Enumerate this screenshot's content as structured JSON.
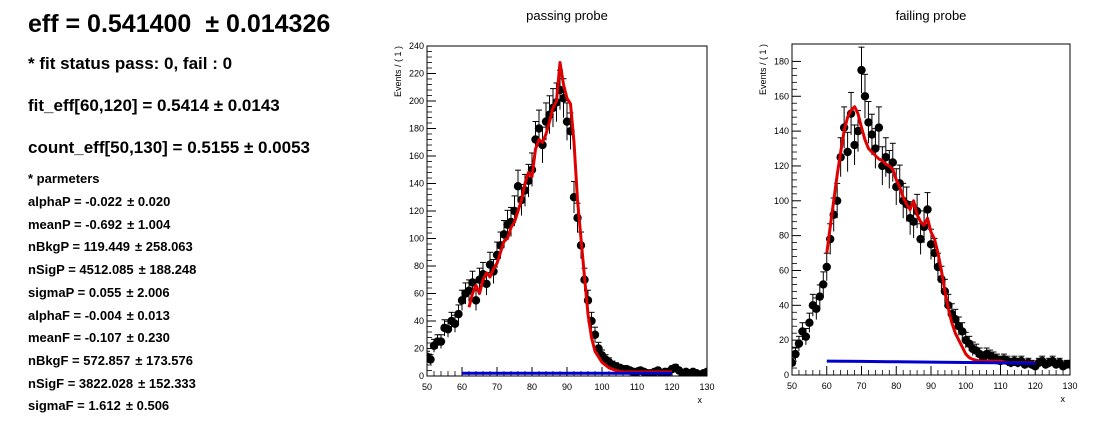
{
  "summary": {
    "eff": "eff = 0.541400",
    "eff_err": "± 0.014326",
    "fit_status": "* fit status pass: 0, fail : 0",
    "fit_eff": "fit_eff[60,120] = 0.5414",
    "fit_eff_err": "± 0.0143",
    "count_eff": "count_eff[50,130] = 0.5155",
    "count_eff_err": "± 0.0053",
    "params_header": "* parmeters"
  },
  "parameters": [
    {
      "label": "alphaP = -0.022",
      "err": "± 0.020"
    },
    {
      "label": "meanP = -0.692",
      "err": "± 1.004"
    },
    {
      "label": "nBkgP = 119.449",
      "err": "± 258.063"
    },
    {
      "label": "nSigP = 4512.085",
      "err": "± 188.248"
    },
    {
      "label": "sigmaP = 0.055",
      "err": "± 2.006"
    },
    {
      "label": "alphaF = -0.004",
      "err": "± 0.013"
    },
    {
      "label": "meanF = -0.107",
      "err": "± 0.230"
    },
    {
      "label": "nBkgF = 572.857",
      "err": "± 173.576"
    },
    {
      "label": "nSigF = 3822.028",
      "err": "± 152.333"
    },
    {
      "label": "sigmaF = 1.612",
      "err": "± 0.506"
    }
  ],
  "colors": {
    "data": "#000000",
    "total_fit": "#e00000",
    "background": "#0000cc"
  },
  "chart_data": [
    {
      "type": "scatter",
      "title": "passing probe",
      "xlabel": "x",
      "ylabel": "Events / ( 1 )",
      "xlim": [
        50,
        130
      ],
      "ylim": [
        0,
        240
      ],
      "xticks": [
        50,
        60,
        70,
        80,
        90,
        100,
        110,
        120,
        130
      ],
      "yticks": [
        0,
        20,
        40,
        60,
        80,
        100,
        120,
        140,
        160,
        180,
        200,
        220,
        240
      ],
      "series": [
        {
          "kind": "points_with_errors",
          "x": [
            50,
            51,
            52,
            53,
            54,
            55,
            56,
            57,
            58,
            59,
            60,
            61,
            62,
            63,
            64,
            65,
            66,
            67,
            68,
            69,
            70,
            71,
            72,
            73,
            74,
            75,
            76,
            77,
            78,
            79,
            80,
            81,
            82,
            83,
            84,
            85,
            86,
            87,
            88,
            89,
            90,
            91,
            92,
            93,
            94,
            95,
            96,
            97,
            98,
            99,
            100,
            101,
            102,
            103,
            104,
            105,
            106,
            107,
            108,
            109,
            110,
            111,
            112,
            113,
            114,
            115,
            116,
            117,
            118,
            119,
            120,
            121,
            122,
            123,
            124,
            125,
            126,
            127,
            128,
            129,
            130
          ],
          "y": [
            14,
            12,
            22,
            25,
            25,
            35,
            34,
            40,
            38,
            45,
            55,
            60,
            62,
            68,
            55,
            70,
            74,
            67,
            81,
            76,
            88,
            95,
            103,
            110,
            112,
            120,
            138,
            128,
            135,
            142,
            150,
            172,
            180,
            168,
            185,
            190,
            195,
            199,
            208,
            202,
            185,
            178,
            130,
            115,
            95,
            70,
            55,
            40,
            30,
            20,
            15,
            12,
            10,
            8,
            7,
            6,
            5,
            5,
            4,
            3,
            3,
            4,
            3,
            2,
            2,
            3,
            4,
            2,
            3,
            3,
            5,
            6,
            4,
            2,
            3,
            2,
            3,
            2,
            1,
            2,
            3
          ],
          "err": [
            4,
            3.5,
            4.7,
            5,
            5,
            5.9,
            5.8,
            6.3,
            6.2,
            6.7,
            7.4,
            7.7,
            7.9,
            8.2,
            7.4,
            8.4,
            8.6,
            8.2,
            9,
            8.7,
            9.4,
            9.7,
            10.1,
            10.5,
            10.6,
            11,
            11.7,
            11.3,
            11.6,
            11.9,
            12.2,
            13.1,
            13.4,
            13,
            13.6,
            13.8,
            14,
            14.1,
            14.4,
            14.2,
            13.6,
            13.3,
            11.4,
            10.7,
            9.7,
            8.4,
            7.4,
            6.3,
            5.5,
            4.5,
            3.9,
            3.5,
            3.2,
            2.8,
            2.6,
            2.4,
            2.2,
            2.2,
            2,
            1.7,
            1.7,
            2,
            1.7,
            1.4,
            1.4,
            1.7,
            2,
            1.4,
            1.7,
            1.7,
            2.2,
            2.4,
            2,
            1.4,
            1.7,
            1.4,
            1.7,
            1.4,
            1,
            1.4,
            1.7
          ]
        },
        {
          "kind": "line",
          "name": "total fit",
          "x": [
            62,
            63,
            64,
            65,
            66,
            67,
            68,
            69,
            70,
            71,
            72,
            73,
            74,
            75,
            76,
            77,
            78,
            79,
            80,
            81,
            82,
            83,
            84,
            85,
            86,
            87,
            88,
            89,
            90,
            91,
            92,
            93,
            94,
            95,
            96,
            97,
            98,
            100,
            102,
            104,
            106,
            108,
            110,
            112,
            114,
            116,
            118,
            120
          ],
          "y": [
            50,
            60,
            66,
            60,
            70,
            75,
            72,
            78,
            82,
            90,
            98,
            100,
            108,
            112,
            120,
            128,
            140,
            148,
            145,
            165,
            172,
            170,
            176,
            185,
            195,
            200,
            228,
            212,
            202,
            198,
            170,
            128,
            100,
            72,
            45,
            28,
            18,
            10,
            6,
            4,
            3,
            3,
            3,
            3,
            3,
            3,
            3,
            3
          ]
        },
        {
          "kind": "line",
          "name": "background",
          "x": [
            60,
            70,
            80,
            90,
            100,
            110,
            120
          ],
          "y": [
            2,
            2,
            2,
            2,
            2,
            2,
            2
          ]
        }
      ]
    },
    {
      "type": "scatter",
      "title": "failing probe",
      "xlabel": "x",
      "ylabel": "Events / ( 1 )",
      "xlim": [
        50,
        130
      ],
      "ylim": [
        0,
        190
      ],
      "xticks": [
        50,
        60,
        70,
        80,
        90,
        100,
        110,
        120,
        130
      ],
      "yticks": [
        0,
        20,
        40,
        60,
        80,
        100,
        120,
        140,
        160,
        180
      ],
      "series": [
        {
          "kind": "points_with_errors",
          "x": [
            50,
            51,
            52,
            53,
            54,
            55,
            56,
            57,
            58,
            59,
            60,
            61,
            62,
            63,
            64,
            65,
            66,
            67,
            68,
            69,
            70,
            71,
            72,
            73,
            74,
            75,
            76,
            77,
            78,
            79,
            80,
            81,
            82,
            83,
            84,
            85,
            86,
            87,
            88,
            89,
            90,
            91,
            92,
            93,
            94,
            95,
            96,
            97,
            98,
            99,
            100,
            101,
            102,
            103,
            104,
            105,
            106,
            107,
            108,
            109,
            110,
            111,
            112,
            113,
            114,
            115,
            116,
            117,
            118,
            119,
            120,
            121,
            122,
            123,
            124,
            125,
            126,
            127,
            128,
            129,
            130
          ],
          "y": [
            7,
            12,
            18,
            25,
            22,
            30,
            40,
            38,
            45,
            52,
            62,
            78,
            92,
            100,
            125,
            142,
            128,
            150,
            132,
            140,
            175,
            160,
            145,
            138,
            130,
            142,
            120,
            125,
            118,
            122,
            108,
            110,
            100,
            98,
            90,
            88,
            94,
            78,
            85,
            95,
            75,
            70,
            62,
            55,
            48,
            40,
            35,
            32,
            28,
            25,
            20,
            18,
            15,
            14,
            12,
            10,
            12,
            11,
            10,
            9,
            8,
            9,
            8,
            7,
            8,
            7,
            8,
            6,
            7,
            6,
            5,
            7,
            8,
            6,
            7,
            8,
            6,
            7,
            5,
            6,
            6
          ],
          "err": [
            2.6,
            3.5,
            4.2,
            5,
            4.7,
            5.5,
            6.3,
            6.2,
            6.7,
            7.2,
            7.9,
            8.8,
            9.6,
            10,
            11.2,
            11.9,
            11.3,
            12.2,
            11.5,
            11.8,
            13.2,
            12.6,
            12,
            11.7,
            11.4,
            11.9,
            11,
            11.2,
            10.9,
            11,
            10.4,
            10.5,
            10,
            9.9,
            9.5,
            9.4,
            9.7,
            8.8,
            9.2,
            9.7,
            8.7,
            8.4,
            7.9,
            7.4,
            6.9,
            6.3,
            5.9,
            5.7,
            5.3,
            5,
            4.5,
            4.2,
            3.9,
            3.7,
            3.5,
            3.2,
            3.5,
            3.3,
            3.2,
            3,
            2.8,
            3,
            2.8,
            2.6,
            2.8,
            2.6,
            2.8,
            2.4,
            2.6,
            2.4,
            2.2,
            2.6,
            2.8,
            2.4,
            2.6,
            2.8,
            2.4,
            2.6,
            2.2,
            2.4,
            2.4
          ]
        },
        {
          "kind": "line",
          "name": "total fit",
          "x": [
            60,
            61,
            62,
            63,
            64,
            65,
            66,
            67,
            68,
            69,
            70,
            71,
            72,
            73,
            74,
            75,
            76,
            77,
            78,
            79,
            80,
            81,
            82,
            83,
            84,
            85,
            86,
            87,
            88,
            89,
            90,
            91,
            92,
            93,
            94,
            95,
            96,
            97,
            98,
            99,
            100,
            101,
            102,
            104,
            106,
            108,
            110,
            112,
            114,
            116,
            118,
            120
          ],
          "y": [
            70,
            85,
            100,
            115,
            128,
            140,
            148,
            152,
            154,
            150,
            142,
            135,
            130,
            128,
            126,
            124,
            123,
            121,
            120,
            118,
            112,
            108,
            102,
            98,
            95,
            100,
            92,
            88,
            86,
            90,
            82,
            78,
            70,
            60,
            48,
            38,
            30,
            24,
            20,
            16,
            12,
            10,
            9,
            8,
            8,
            8,
            8,
            7,
            7,
            7,
            7,
            7
          ],
          "style": "smooth"
        },
        {
          "kind": "line",
          "name": "background",
          "x": [
            60,
            70,
            80,
            90,
            100,
            110,
            120
          ],
          "y": [
            8,
            7.8,
            7.6,
            7.4,
            7.2,
            7,
            6.8
          ]
        }
      ]
    }
  ]
}
